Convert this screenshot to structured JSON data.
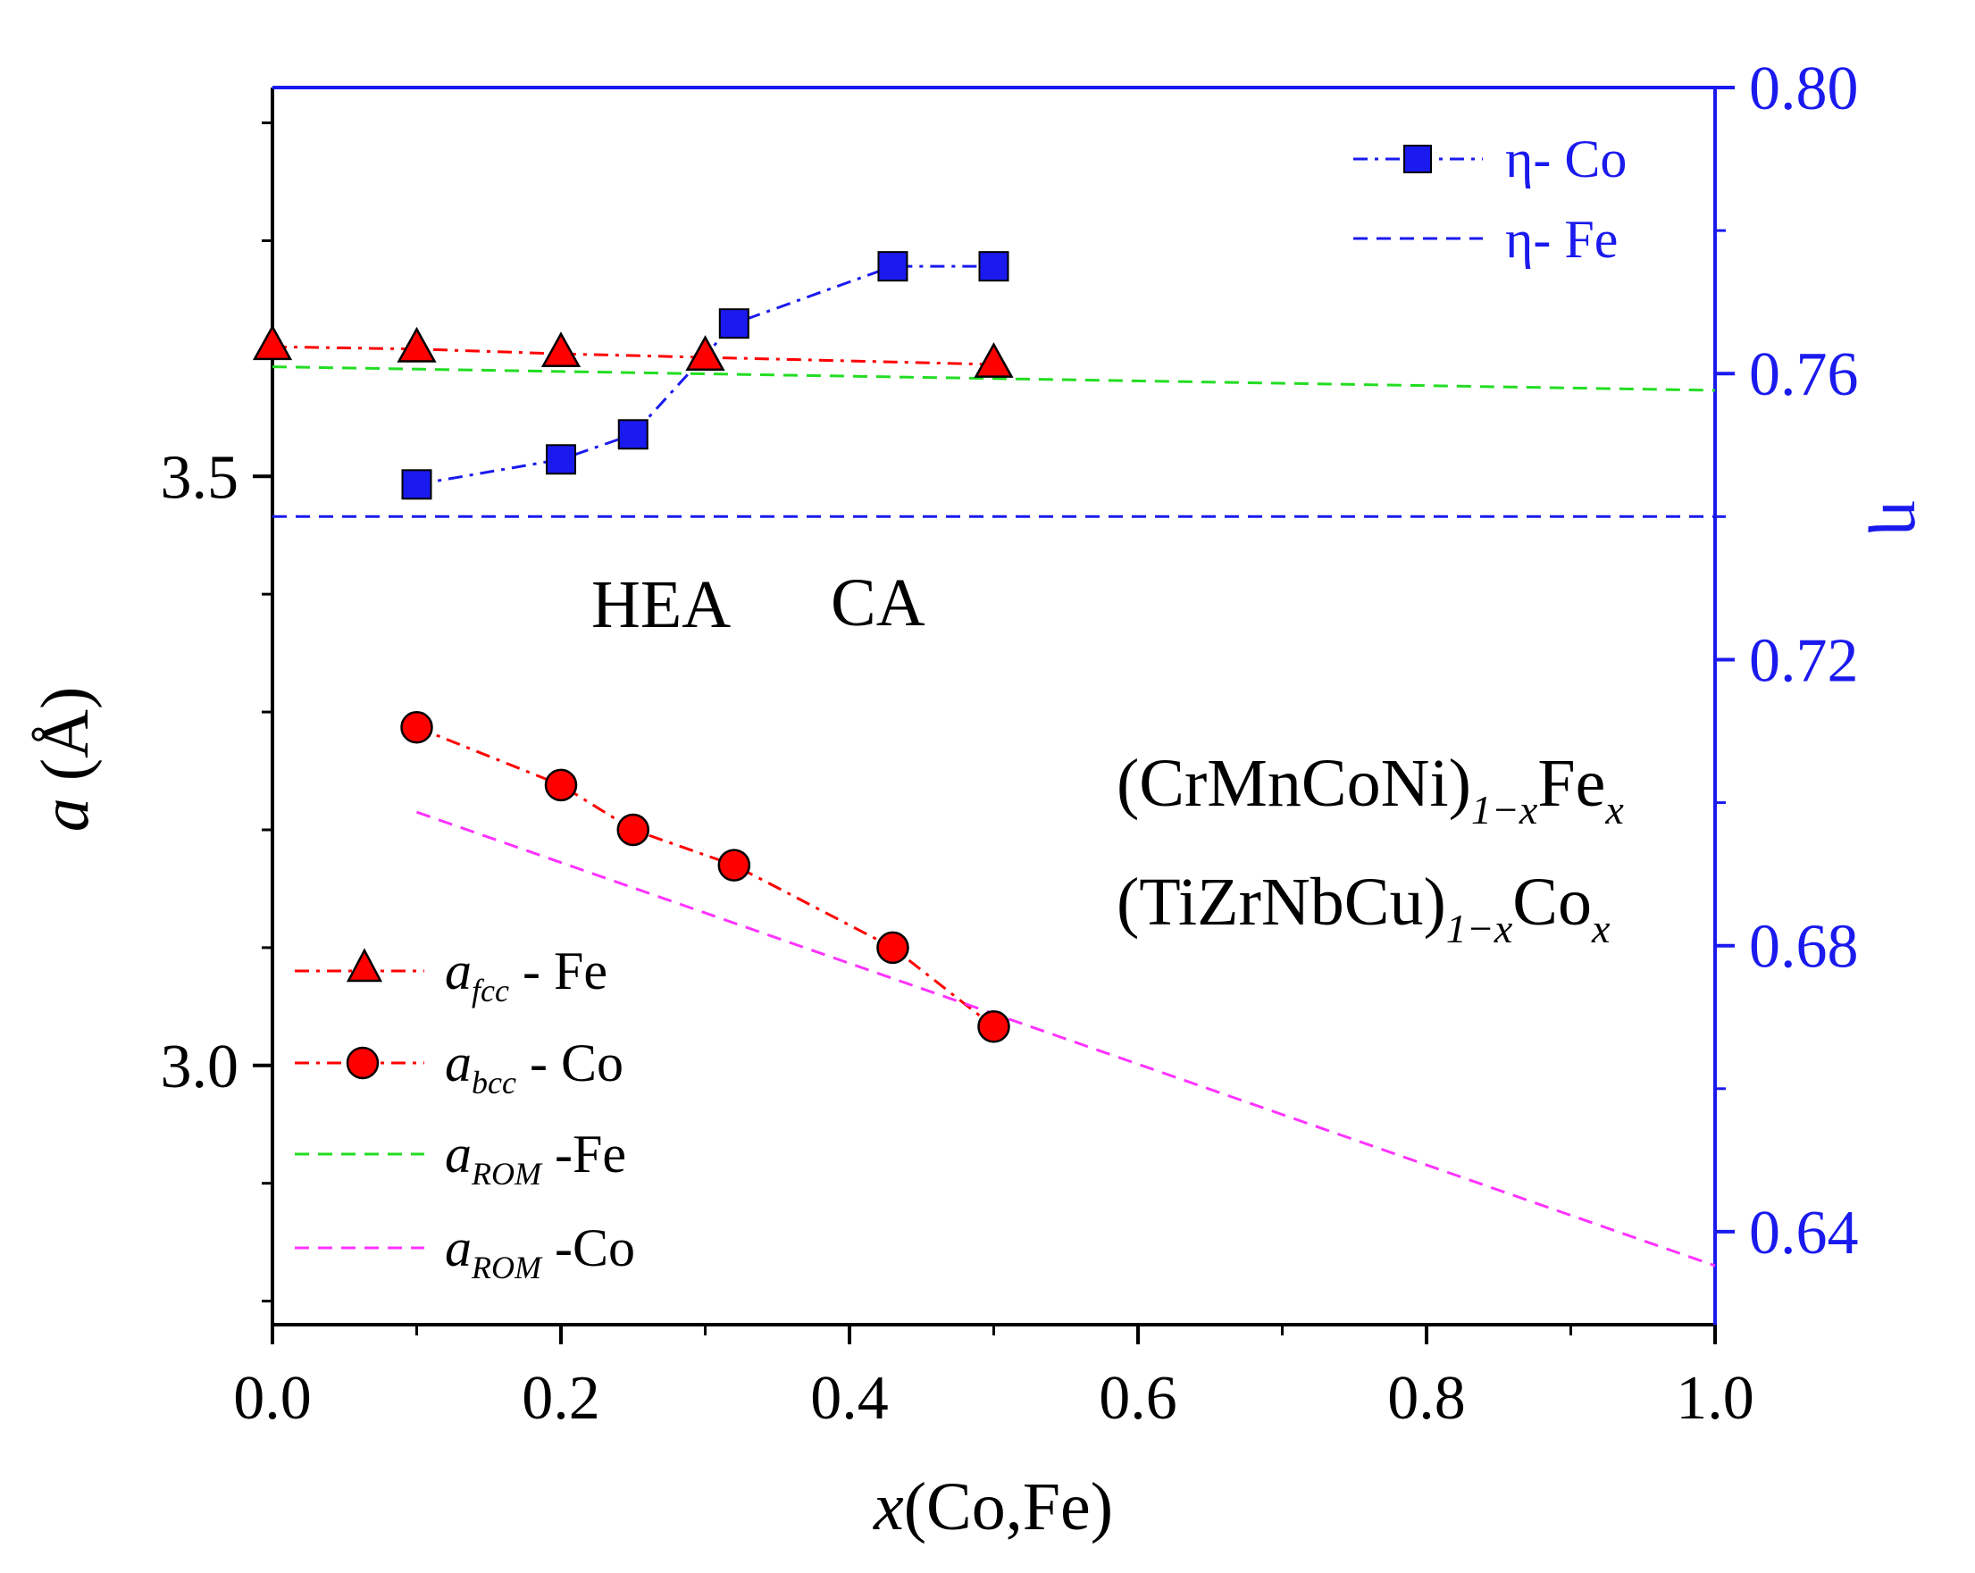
{
  "chart_data": {
    "type": "line",
    "xlabel": "x(Co,Fe)",
    "ylabel": "a (Å)",
    "y2label": "η",
    "xlim": [
      0.0,
      1.0
    ],
    "ylim": [
      2.78,
      3.83
    ],
    "y2lim": [
      0.627,
      0.8
    ],
    "x_ticks": [
      "0.0",
      "0.2",
      "0.4",
      "0.6",
      "0.8",
      "1.0"
    ],
    "x_tick_values": [
      0.0,
      0.2,
      0.4,
      0.6,
      0.8,
      1.0
    ],
    "y_ticks": [
      "3.0",
      "3.5"
    ],
    "y_tick_values": [
      3.0,
      3.5
    ],
    "y2_ticks": [
      "0.64",
      "0.68",
      "0.72",
      "0.76",
      "0.80"
    ],
    "y2_tick_values": [
      0.64,
      0.68,
      0.72,
      0.76,
      0.8
    ],
    "series": [
      {
        "name": "a_fcc - Fe",
        "axis": "left",
        "color": "#ff0000",
        "marker": "triangle",
        "line": "dashdot",
        "x": [
          0.0,
          0.1,
          0.2,
          0.3,
          0.5
        ],
        "y": [
          3.61,
          3.608,
          3.604,
          3.601,
          3.595
        ]
      },
      {
        "name": "a_bcc - Co",
        "axis": "left",
        "color": "#ff0000",
        "marker": "circle",
        "line": "dashdot",
        "x": [
          0.1,
          0.2,
          0.25,
          0.32,
          0.43,
          0.5
        ],
        "y": [
          3.287,
          3.238,
          3.2,
          3.17,
          3.1,
          3.033
        ]
      },
      {
        "name": "a_ROM -Fe",
        "axis": "left",
        "color": "#22dd22",
        "marker": "none",
        "line": "dash",
        "x": [
          0.0,
          1.0
        ],
        "y": [
          3.593,
          3.573
        ]
      },
      {
        "name": "a_ROM -Co",
        "axis": "left",
        "color": "#ff33ff",
        "marker": "none",
        "line": "dash",
        "x": [
          0.1,
          1.0
        ],
        "y": [
          3.215,
          2.83
        ]
      },
      {
        "name": "η- Co",
        "axis": "right",
        "color": "#1a1aee",
        "marker": "square",
        "line": "dashdot",
        "x": [
          0.1,
          0.2,
          0.25,
          0.32,
          0.43,
          0.5
        ],
        "y": [
          0.7445,
          0.748,
          0.7515,
          0.767,
          0.775,
          0.775
        ]
      },
      {
        "name": "η- Fe",
        "axis": "right",
        "color": "#1a1aee",
        "marker": "none",
        "line": "dash",
        "x": [
          0.0,
          1.0
        ],
        "y": [
          0.74,
          0.74
        ]
      }
    ],
    "annotations": [
      "HEA",
      "CA"
    ]
  },
  "legend_left": [
    {
      "sym": "a",
      "sub": "fcc",
      "suffix": " -  Fe"
    },
    {
      "sym": "a",
      "sub": "bcc",
      "suffix": " - Co"
    },
    {
      "sym": "a",
      "sub": "ROM",
      "suffix": " -Fe"
    },
    {
      "sym": "a",
      "sub": "ROM",
      "suffix": " -Co"
    }
  ],
  "legend_right": [
    "η- Co",
    "η- Fe"
  ],
  "formula1": {
    "main": "(CrMnCoNi)",
    "sub": "1−x",
    "el": "Fe",
    "x": "x"
  },
  "formula2": {
    "main": "(TiZrNbCu)",
    "sub": "1−x",
    "el": "Co",
    "x": "x"
  },
  "axis_titles": {
    "y_italic": "a",
    "y_rest": " (Å)",
    "x_italic": "x",
    "x_rest": "(Co,Fe)",
    "y2": "η"
  }
}
